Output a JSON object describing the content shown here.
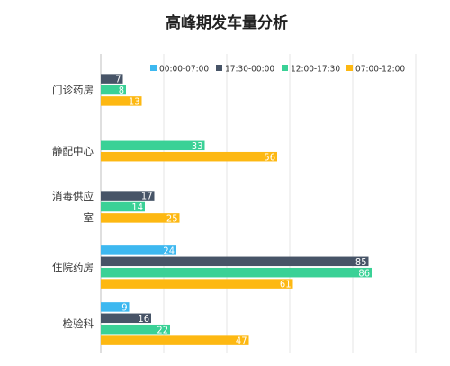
{
  "chart_data": {
    "type": "bar",
    "orientation": "horizontal",
    "title": "高峰期发车量分析",
    "categories": [
      "门诊药房",
      "静配中心",
      "消毒供应室",
      "住院药房",
      "检验科"
    ],
    "category_display_lines": [
      [
        "门诊药房"
      ],
      [
        "静配中心"
      ],
      [
        "消毒供应",
        "室"
      ],
      [
        "住院药房"
      ],
      [
        "检验科"
      ]
    ],
    "series": [
      {
        "name": "00:00-07:00",
        "color": "#3db8f0",
        "values": [
          null,
          null,
          null,
          24,
          9
        ]
      },
      {
        "name": "17:30-00:00",
        "color": "#475467",
        "values": [
          7,
          null,
          17,
          85,
          16
        ]
      },
      {
        "name": "12:00-17:30",
        "color": "#3ad196",
        "values": [
          8,
          33,
          14,
          86,
          22
        ]
      },
      {
        "name": "07:00-12:00",
        "color": "#fdb812",
        "values": [
          13,
          56,
          25,
          61,
          47
        ]
      }
    ],
    "xlim": [
      0,
      100
    ],
    "x_axis_visible": false,
    "grid": true,
    "legend_position": "top-right",
    "data_labels": "inside-end"
  }
}
